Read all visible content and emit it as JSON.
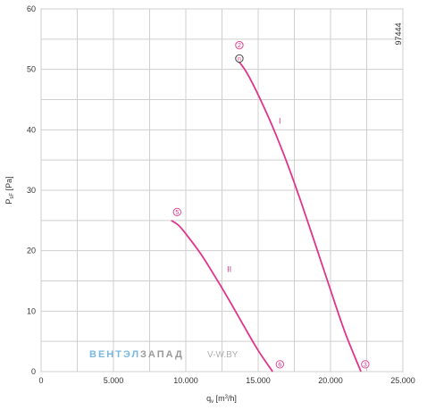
{
  "chart_data": {
    "type": "line",
    "diagram_id": "97444",
    "xlabel_main": "q",
    "xlabel_sub": "v",
    "xlabel_unit_pre": " [m",
    "xlabel_unit_sup": "3",
    "xlabel_unit_post": "/h]",
    "ylabel_main": "P",
    "ylabel_sub": "sF",
    "ylabel_unit": " [Pa]",
    "xlim": [
      0,
      25000
    ],
    "ylim": [
      0,
      60
    ],
    "grid": true,
    "x_ticks": [
      0,
      2500,
      5000,
      7500,
      10000,
      12500,
      15000,
      17500,
      20000,
      22500,
      25000
    ],
    "x_tick_labels": [
      "0",
      "",
      "5.000",
      "",
      "10.000",
      "",
      "15.000",
      "",
      "20.000",
      "",
      "25.000"
    ],
    "y_ticks": [
      0,
      5,
      10,
      15,
      20,
      25,
      30,
      35,
      40,
      45,
      50,
      55,
      60
    ],
    "y_tick_labels": [
      "0",
      "",
      "10",
      "",
      "20",
      "",
      "30",
      "",
      "40",
      "",
      "50",
      "",
      "60"
    ],
    "line_color": "#e0348a",
    "series": [
      {
        "name": "I",
        "x": [
          13600,
          14200,
          15000,
          16000,
          17000,
          18000,
          19000,
          20000,
          21000,
          22100
        ],
        "y": [
          51.5,
          49.5,
          45.8,
          40.5,
          34.5,
          27.8,
          20.7,
          13.5,
          6.5,
          0
        ]
      },
      {
        "name": "II",
        "x": [
          9000,
          9500,
          10000,
          11000,
          12000,
          13000,
          14000,
          15000,
          16000
        ],
        "y": [
          25.0,
          24.2,
          22.8,
          19.6,
          15.8,
          11.8,
          7.6,
          3.5,
          0
        ]
      }
    ],
    "point_markers": [
      {
        "label": "2",
        "x": 13700,
        "y": 54.0
      },
      {
        "label": "n",
        "x": 13700,
        "y": 51.8
      },
      {
        "label": "3",
        "x": 22400,
        "y": 1.2
      },
      {
        "label": "5",
        "x": 9400,
        "y": 26.4
      },
      {
        "label": "6",
        "x": 16500,
        "y": 1.2
      }
    ],
    "curve_labels": [
      {
        "text": "I",
        "x": 16500,
        "y": 41.0
      },
      {
        "text": "II",
        "x": 13000,
        "y": 16.5
      }
    ],
    "watermark": {
      "part1": "ВЕНТЭЛ",
      "part2": "ЗАПАД",
      "part3": "V-W.BY"
    }
  }
}
